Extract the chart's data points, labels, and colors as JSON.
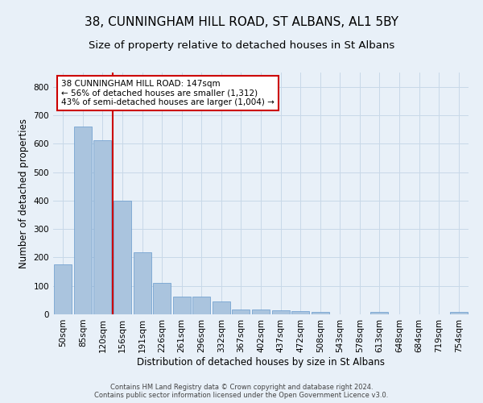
{
  "title": "38, CUNNINGHAM HILL ROAD, ST ALBANS, AL1 5BY",
  "subtitle": "Size of property relative to detached houses in St Albans",
  "xlabel": "Distribution of detached houses by size in St Albans",
  "ylabel": "Number of detached properties",
  "footer_line1": "Contains HM Land Registry data © Crown copyright and database right 2024.",
  "footer_line2": "Contains public sector information licensed under the Open Government Licence v3.0.",
  "categories": [
    "50sqm",
    "85sqm",
    "120sqm",
    "156sqm",
    "191sqm",
    "226sqm",
    "261sqm",
    "296sqm",
    "332sqm",
    "367sqm",
    "402sqm",
    "437sqm",
    "472sqm",
    "508sqm",
    "543sqm",
    "578sqm",
    "613sqm",
    "648sqm",
    "684sqm",
    "719sqm",
    "754sqm"
  ],
  "values": [
    175,
    660,
    612,
    400,
    218,
    110,
    63,
    63,
    45,
    18,
    17,
    14,
    10,
    8,
    0,
    0,
    8,
    0,
    0,
    0,
    8
  ],
  "bar_color": "#aac4de",
  "bar_edge_color": "#6699cc",
  "bar_edge_width": 0.5,
  "grid_color": "#c8d8e8",
  "background_color": "#e8f0f8",
  "ylim": [
    0,
    850
  ],
  "yticks": [
    0,
    100,
    200,
    300,
    400,
    500,
    600,
    700,
    800
  ],
  "red_line_x": 2.5,
  "annotation_line1": "38 CUNNINGHAM HILL ROAD: 147sqm",
  "annotation_line2": "← 56% of detached houses are smaller (1,312)",
  "annotation_line3": "43% of semi-detached houses are larger (1,004) →",
  "annotation_box_color": "#ffffff",
  "annotation_border_color": "#cc0000",
  "title_fontsize": 11,
  "subtitle_fontsize": 9.5,
  "axis_label_fontsize": 8.5,
  "tick_fontsize": 7.5,
  "annotation_fontsize": 7.5
}
